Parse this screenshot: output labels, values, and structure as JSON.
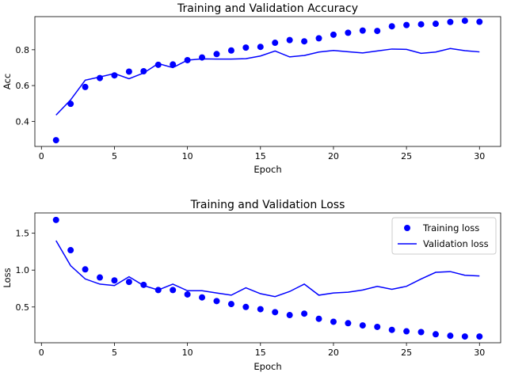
{
  "chart_data": [
    {
      "type": "scatter+line",
      "title": "Training and Validation Accuracy",
      "xlabel": "Epoch",
      "ylabel": "Acc",
      "xlim": [
        -0.45,
        31.45
      ],
      "ylim": [
        0.26,
        0.985
      ],
      "xticks": [
        0,
        5,
        10,
        15,
        20,
        25,
        30
      ],
      "yticks": [
        0.4,
        0.6,
        0.8
      ],
      "x": [
        1,
        2,
        3,
        4,
        5,
        6,
        7,
        8,
        9,
        10,
        11,
        12,
        13,
        14,
        15,
        16,
        17,
        18,
        19,
        20,
        21,
        22,
        23,
        24,
        25,
        26,
        27,
        28,
        29,
        30
      ],
      "series": [
        {
          "style": "points",
          "color": "#0000ff",
          "values": [
            0.295,
            0.498,
            0.592,
            0.642,
            0.657,
            0.678,
            0.68,
            0.716,
            0.718,
            0.742,
            0.757,
            0.776,
            0.796,
            0.812,
            0.816,
            0.839,
            0.854,
            0.847,
            0.864,
            0.884,
            0.895,
            0.907,
            0.905,
            0.931,
            0.938,
            0.942,
            0.945,
            0.955,
            0.962,
            0.956
          ]
        },
        {
          "style": "line",
          "color": "#0000ff",
          "values": [
            0.435,
            0.52,
            0.63,
            0.648,
            0.667,
            0.638,
            0.67,
            0.723,
            0.7,
            0.742,
            0.749,
            0.748,
            0.748,
            0.75,
            0.765,
            0.793,
            0.76,
            0.768,
            0.787,
            0.796,
            0.789,
            0.782,
            0.793,
            0.804,
            0.802,
            0.78,
            0.787,
            0.807,
            0.795,
            0.788
          ]
        }
      ],
      "grid": false
    },
    {
      "type": "scatter+line",
      "title": "Training and Validation Loss",
      "xlabel": "Epoch",
      "ylabel": "Loss",
      "xlim": [
        -0.45,
        31.45
      ],
      "ylim": [
        0.015,
        1.775
      ],
      "xticks": [
        0,
        5,
        10,
        15,
        20,
        25,
        30
      ],
      "yticks": [
        0.5,
        1.0,
        1.5
      ],
      "x": [
        1,
        2,
        3,
        4,
        5,
        6,
        7,
        8,
        9,
        10,
        11,
        12,
        13,
        14,
        15,
        16,
        17,
        18,
        19,
        20,
        21,
        22,
        23,
        24,
        25,
        26,
        27,
        28,
        29,
        30
      ],
      "series": [
        {
          "name": "Training loss",
          "style": "points",
          "color": "#0000ff",
          "values": [
            1.68,
            1.27,
            1.01,
            0.9,
            0.86,
            0.84,
            0.8,
            0.73,
            0.73,
            0.67,
            0.63,
            0.58,
            0.54,
            0.5,
            0.47,
            0.43,
            0.39,
            0.41,
            0.34,
            0.3,
            0.28,
            0.25,
            0.23,
            0.19,
            0.17,
            0.16,
            0.13,
            0.11,
            0.1,
            0.1
          ]
        },
        {
          "name": "Validation loss",
          "style": "line",
          "color": "#0000ff",
          "values": [
            1.4,
            1.06,
            0.88,
            0.81,
            0.79,
            0.91,
            0.79,
            0.73,
            0.81,
            0.72,
            0.72,
            0.69,
            0.66,
            0.76,
            0.68,
            0.64,
            0.71,
            0.81,
            0.66,
            0.69,
            0.7,
            0.73,
            0.78,
            0.74,
            0.78,
            0.88,
            0.97,
            0.98,
            0.93,
            0.92
          ]
        }
      ],
      "legend": "upper right",
      "grid": false
    }
  ]
}
